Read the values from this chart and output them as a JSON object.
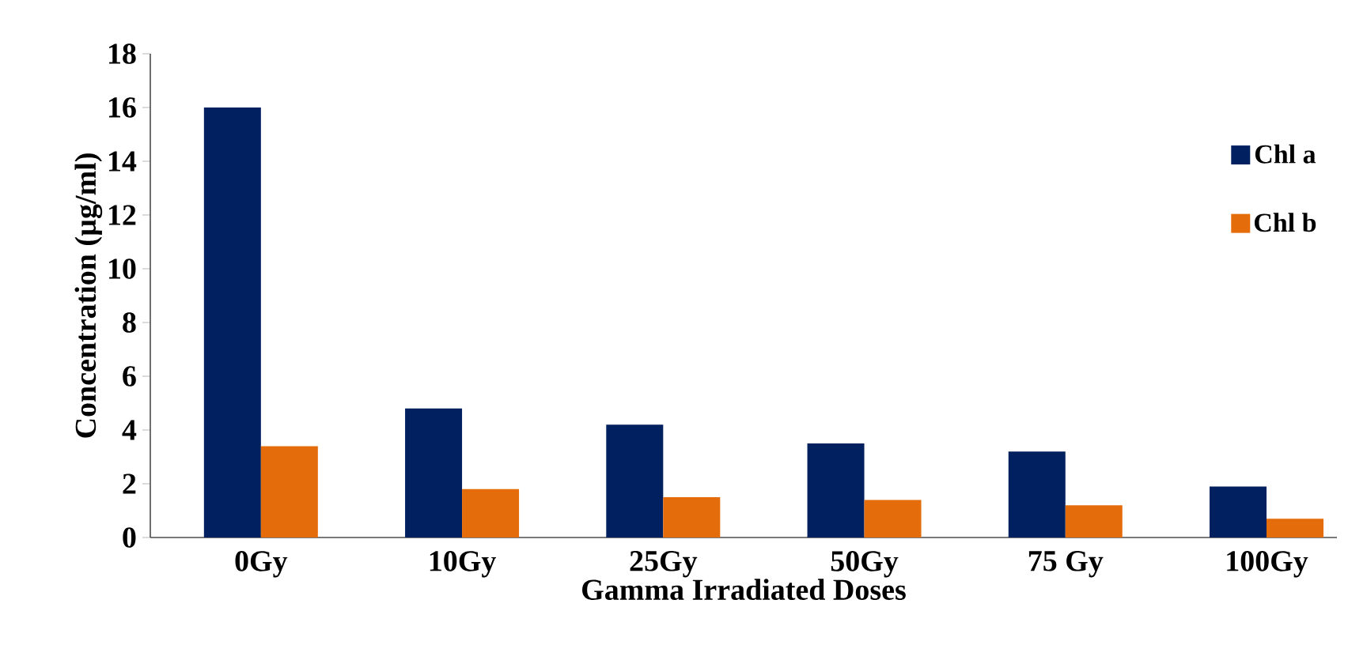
{
  "chart_data": {
    "type": "bar",
    "xlabel": "Gamma Irradiated Doses",
    "ylabel": "Concentration (µg/ml)",
    "categories": [
      "0Gy",
      "10Gy",
      "25Gy",
      "50Gy",
      "75 Gy",
      "100Gy"
    ],
    "series": [
      {
        "name": "Chl a",
        "color": "#002060",
        "values": [
          16.0,
          4.8,
          4.2,
          3.5,
          3.2,
          1.9
        ]
      },
      {
        "name": "Chl b",
        "color": "#e46c0a",
        "values": [
          3.4,
          1.8,
          1.5,
          1.4,
          1.2,
          0.7
        ]
      }
    ],
    "ylim": [
      0,
      18
    ],
    "yticks": [
      0,
      2,
      4,
      6,
      8,
      10,
      12,
      14,
      16,
      18
    ],
    "grid": false,
    "legend": "right"
  }
}
